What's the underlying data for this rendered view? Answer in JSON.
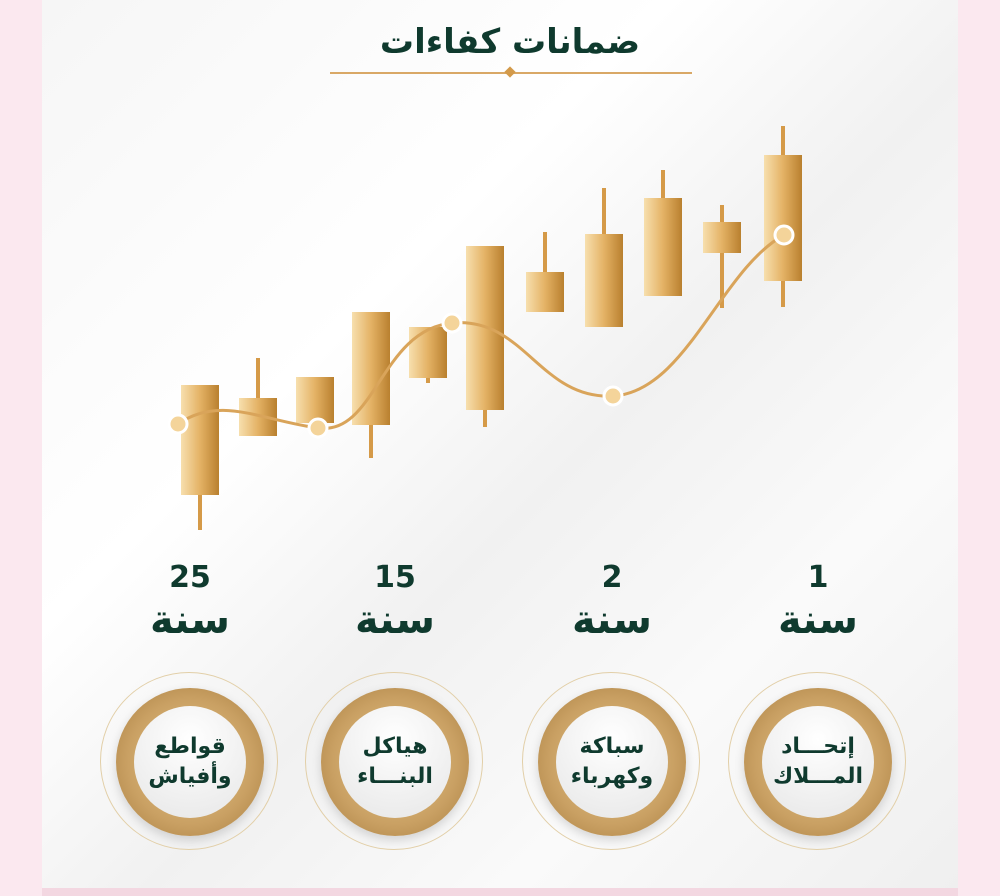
{
  "title": "ضمانات كفاءات",
  "colors": {
    "accent_gold": "#c9a063",
    "text_green": "#0f3a2e",
    "background_pink": "#fbe8ef"
  },
  "decoration": "rising gold candlestick chart with trend curve",
  "warranties": [
    {
      "number": "25",
      "unit": "سنة",
      "line1": "قواطع",
      "line2": "وأفياش"
    },
    {
      "number": "15",
      "unit": "سنة",
      "line1": "هياكل",
      "line2": "البنـــاء"
    },
    {
      "number": "2",
      "unit": "سنة",
      "line1": "سباكة",
      "line2": "وكهرباء"
    },
    {
      "number": "1",
      "unit": "سنة",
      "line1": "إتحـــاد",
      "line2": "المـــلاك"
    }
  ]
}
